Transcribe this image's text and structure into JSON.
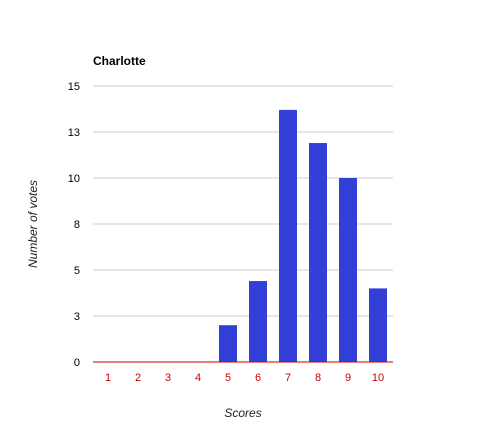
{
  "chart_data": {
    "type": "bar",
    "title": "Charlotte",
    "xlabel": "Scores",
    "ylabel": "Number of votes",
    "categories": [
      "1",
      "2",
      "3",
      "4",
      "5",
      "6",
      "7",
      "8",
      "9",
      "10"
    ],
    "values": [
      0,
      0,
      0,
      0,
      2,
      4.4,
      13.7,
      11.9,
      10,
      4
    ],
    "ylim": [
      0,
      15
    ],
    "yticks": [
      0,
      2.5,
      5,
      7.5,
      10,
      12.5,
      15
    ],
    "ytick_labels": [
      "0",
      "3",
      "5",
      "8",
      "10",
      "13",
      "15"
    ],
    "grid": true,
    "legend": "none",
    "colors": {
      "bar": "#3340d8",
      "grid": "#cccccc",
      "axis": "#cc0000",
      "category_label": "#cc0000"
    }
  }
}
